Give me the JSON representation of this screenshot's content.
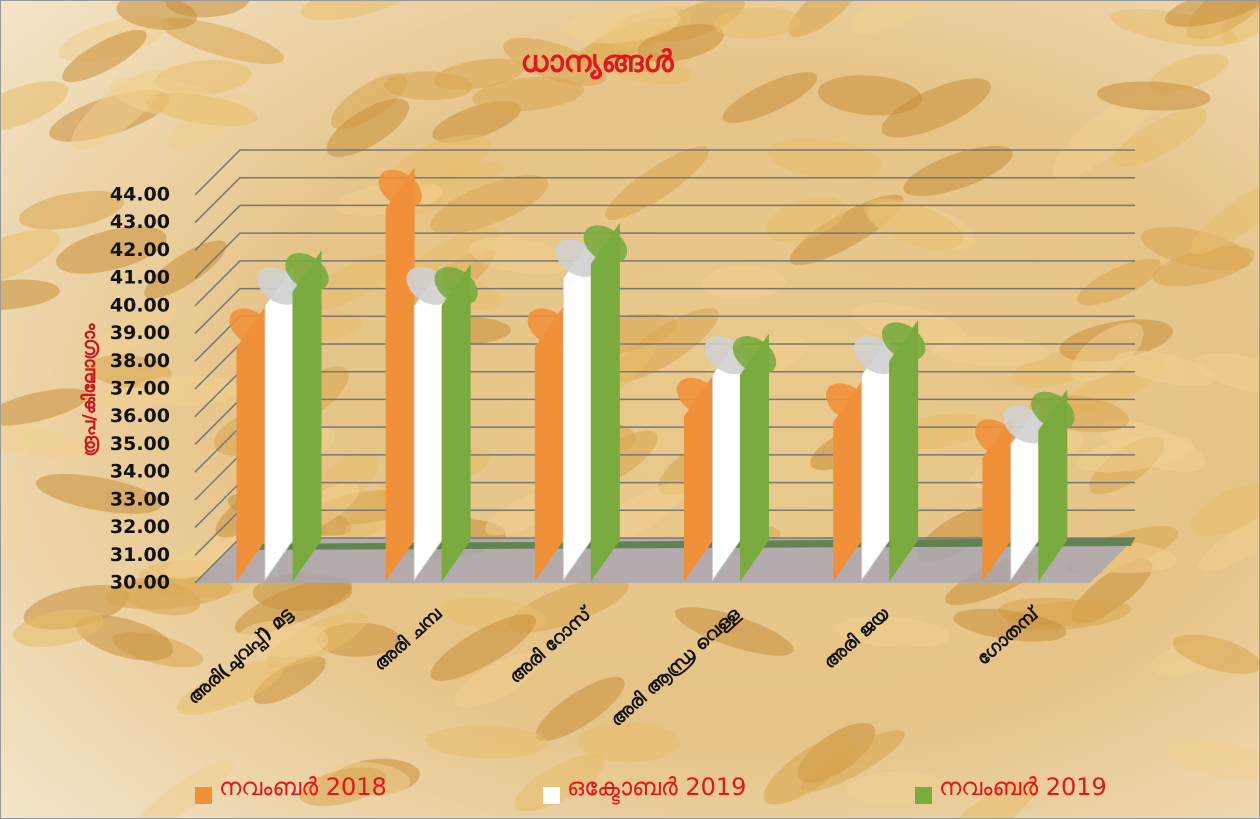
{
  "chart_data": {
    "type": "bar",
    "title": "ധാന്യങ്ങൾ",
    "y_label": "രൂപ/കിലോഗ്രാം",
    "categories": [
      "അരി(ചുവപ്പ്) മട്ട",
      "അരി ചമ്പ",
      "അരി റോസ്",
      "അരി ആന്ധ്ര വെള്ള",
      "അരി ജയ",
      "ഗോതമ്പ്"
    ],
    "series": [
      {
        "name": "നവംബർ 2018",
        "color": "#f0913a",
        "values": [
          38.5,
          43.5,
          38.5,
          36,
          35.8,
          34.5
        ]
      },
      {
        "name": "ഒക്ടോബർ 2019",
        "color": "#ffffff",
        "values": [
          40,
          40,
          41,
          37.5,
          37.5,
          35
        ]
      },
      {
        "name": "നവംബർ 2019",
        "color": "#7aab3e",
        "values": [
          40.5,
          40,
          41.5,
          37.5,
          38,
          35.5
        ]
      }
    ],
    "ylim": [
      30,
      44
    ],
    "yticks": [
      {
        "value": 30,
        "label": "30.00"
      },
      {
        "value": 31,
        "label": "31.00"
      },
      {
        "value": 32,
        "label": "32.00"
      },
      {
        "value": 33,
        "label": "33.00"
      },
      {
        "value": 34,
        "label": "34.00"
      },
      {
        "value": 35,
        "label": "35.00"
      },
      {
        "value": 36,
        "label": "36.00"
      },
      {
        "value": 37,
        "label": "37.00"
      },
      {
        "value": 38,
        "label": "38.00"
      },
      {
        "value": 39,
        "label": "39.00"
      },
      {
        "value": 40,
        "label": "40.00"
      },
      {
        "value": 41,
        "label": "41.00"
      },
      {
        "value": 42,
        "label": "42.00"
      },
      {
        "value": 43,
        "label": "43.00"
      },
      {
        "value": 44,
        "label": "44.00"
      }
    ],
    "grid": true,
    "legend": "bottom"
  }
}
